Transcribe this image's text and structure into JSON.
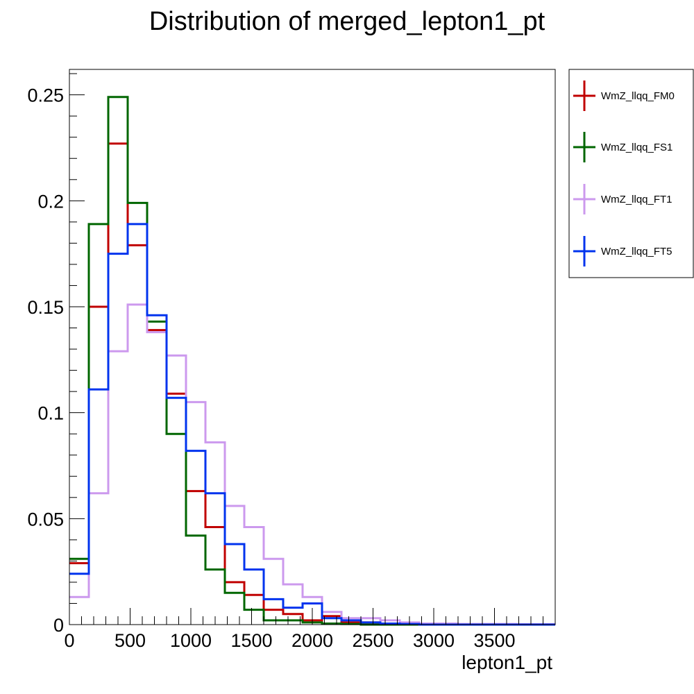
{
  "chart_data": {
    "type": "step",
    "title": "Distribution of merged_lepton1_pt",
    "xlabel": "lepton1_pt",
    "ylabel": "",
    "xlim": [
      0,
      4000
    ],
    "ylim": [
      0,
      0.262
    ],
    "xticks": [
      "0",
      "500",
      "1000",
      "1500",
      "2000",
      "2500",
      "3000",
      "3500"
    ],
    "yticks": [
      "0",
      "0.05",
      "0.1",
      "0.15",
      "0.2",
      "0.25"
    ],
    "bin_edges": [
      0,
      160,
      320,
      480,
      640,
      800,
      960,
      1120,
      1280,
      1440,
      1600,
      1760,
      1920,
      2080,
      2240,
      2400,
      2560,
      2720,
      2880,
      3040,
      3200,
      3360,
      3520,
      3680,
      3840,
      4000
    ],
    "legend_position": "outside-right-top",
    "grid": false,
    "series": [
      {
        "name": "WmZ_llqq_FM0",
        "color": "#c00000",
        "values": [
          0.029,
          0.15,
          0.227,
          0.179,
          0.139,
          0.109,
          0.063,
          0.046,
          0.02,
          0.014,
          0.007,
          0.005,
          0.002,
          0.004,
          0.001,
          0.001,
          0.0005,
          0.0003,
          0,
          0,
          0,
          0,
          0,
          0,
          0
        ]
      },
      {
        "name": "WmZ_llqq_FS1",
        "color": "#006600",
        "values": [
          0.031,
          0.189,
          0.249,
          0.199,
          0.143,
          0.09,
          0.042,
          0.026,
          0.015,
          0.007,
          0.002,
          0.002,
          0.001,
          0.0005,
          0.0003,
          0,
          0,
          0,
          0,
          0,
          0,
          0,
          0,
          0,
          0
        ]
      },
      {
        "name": "WmZ_llqq_FT1",
        "color": "#cc99ee",
        "values": [
          0.013,
          0.062,
          0.129,
          0.151,
          0.138,
          0.127,
          0.105,
          0.086,
          0.056,
          0.046,
          0.031,
          0.019,
          0.013,
          0.006,
          0.003,
          0.003,
          0.002,
          0.001,
          0.0005,
          0.0005,
          0.0003,
          0.0003,
          0.0003,
          0.0002,
          0.0002
        ]
      },
      {
        "name": "WmZ_llqq_FT5",
        "color": "#0033ee",
        "values": [
          0.024,
          0.111,
          0.175,
          0.189,
          0.146,
          0.107,
          0.082,
          0.062,
          0.038,
          0.026,
          0.012,
          0.008,
          0.01,
          0.003,
          0.002,
          0.001,
          0.0005,
          0.0003,
          0,
          0,
          0,
          0,
          0,
          0,
          0
        ]
      }
    ]
  }
}
